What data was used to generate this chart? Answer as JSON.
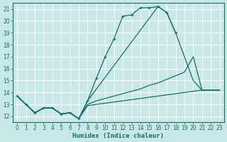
{
  "title": "",
  "xlabel": "Humidex (Indice chaleur)",
  "bg_color": "#c8e8e8",
  "grid_color": "#ffffff",
  "line_color": "#1a6b6b",
  "xlim": [
    -0.5,
    23.5
  ],
  "ylim": [
    11.5,
    21.5
  ],
  "xticks": [
    0,
    1,
    2,
    3,
    4,
    5,
    6,
    7,
    8,
    9,
    10,
    11,
    12,
    13,
    14,
    15,
    16,
    17,
    18,
    19,
    20,
    21,
    22,
    23
  ],
  "yticks": [
    12,
    13,
    14,
    15,
    16,
    17,
    18,
    19,
    20,
    21
  ],
  "line1_x": [
    0,
    1,
    2,
    3,
    4,
    5,
    6,
    7,
    8,
    9,
    10,
    11,
    12,
    13,
    14,
    15,
    16,
    17,
    18
  ],
  "line1_y": [
    13.7,
    13.0,
    12.3,
    12.7,
    12.7,
    12.2,
    12.3,
    11.8,
    13.3,
    15.2,
    17.0,
    18.5,
    20.4,
    20.5,
    21.1,
    21.1,
    21.2,
    20.7,
    19.0
  ],
  "line2_x": [
    0,
    1,
    2,
    3,
    4,
    5,
    6,
    7,
    8,
    16,
    17,
    18,
    19,
    20,
    21,
    22,
    23
  ],
  "line2_y": [
    13.7,
    13.0,
    12.3,
    12.7,
    12.7,
    12.2,
    12.3,
    11.8,
    13.3,
    21.2,
    20.7,
    19.0,
    17.0,
    15.0,
    14.2,
    14.2,
    14.2
  ],
  "line3_x": [
    0,
    1,
    2,
    3,
    4,
    5,
    6,
    7,
    8,
    9,
    10,
    11,
    12,
    13,
    14,
    15,
    16,
    17,
    18,
    19,
    20,
    21,
    22,
    23
  ],
  "line3_y": [
    13.7,
    13.0,
    12.3,
    12.7,
    12.7,
    12.2,
    12.3,
    11.8,
    13.0,
    13.3,
    13.5,
    13.7,
    13.9,
    14.1,
    14.3,
    14.6,
    14.8,
    15.1,
    15.4,
    15.7,
    17.0,
    14.2,
    14.2,
    14.2
  ],
  "line4_x": [
    0,
    1,
    2,
    3,
    4,
    5,
    6,
    7,
    8,
    9,
    10,
    11,
    12,
    13,
    14,
    15,
    16,
    17,
    18,
    19,
    20,
    21,
    22,
    23
  ],
  "line4_y": [
    13.7,
    13.0,
    12.3,
    12.7,
    12.7,
    12.2,
    12.3,
    11.8,
    12.9,
    13.0,
    13.1,
    13.2,
    13.3,
    13.4,
    13.5,
    13.6,
    13.7,
    13.8,
    13.9,
    14.0,
    14.1,
    14.2,
    14.2,
    14.2
  ]
}
